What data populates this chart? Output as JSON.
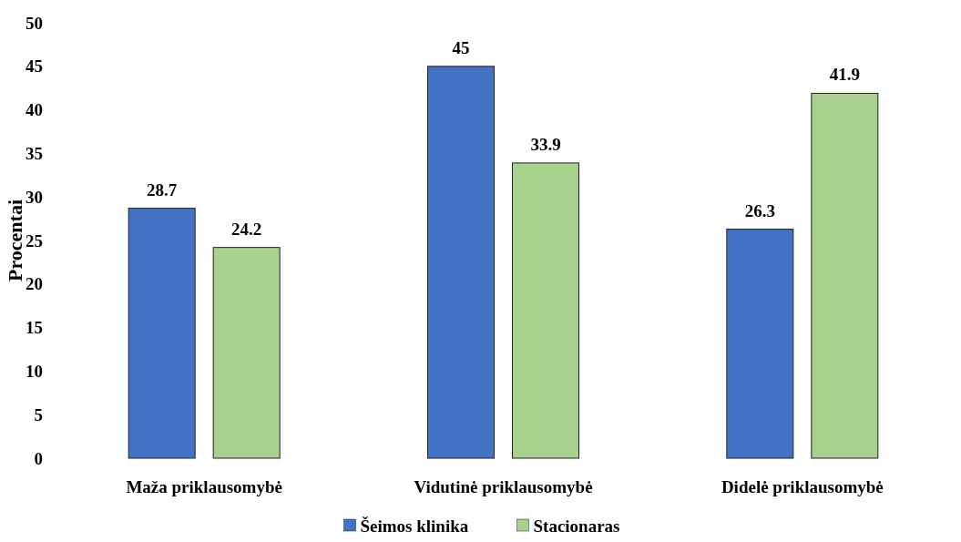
{
  "chart_data": {
    "type": "bar",
    "ylabel": "Procentai",
    "categories": [
      "Maža priklausomybė",
      "Vidutinė priklausomybė",
      "Didelė priklausomybė"
    ],
    "series": [
      {
        "name": "Šeimos klinika",
        "color": "#4472c4",
        "values": [
          28.7,
          45,
          26.3
        ]
      },
      {
        "name": "Stacionaras",
        "color": "#a9d18e",
        "values": [
          24.2,
          33.9,
          41.9
        ]
      }
    ],
    "ylim": [
      0,
      50
    ],
    "yticks": [
      0,
      5,
      10,
      15,
      20,
      25,
      30,
      35,
      40,
      45,
      50
    ],
    "data_labels": true,
    "legend": "bottom",
    "grid": false
  }
}
